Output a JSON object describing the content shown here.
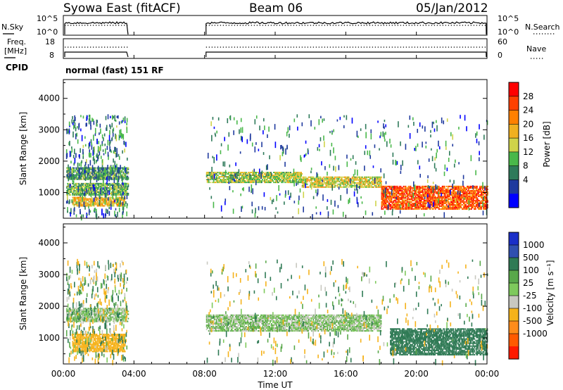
{
  "header": {
    "title": "Syowa East (fitACF)",
    "beam": "Beam 06",
    "date": "05/Jan/2012"
  },
  "nsky_panel": {
    "left_label": "N.Sky",
    "right_label": "N.Search",
    "left_ticks": [
      "10^5",
      "10^0"
    ],
    "right_ticks": [
      "10^5",
      "10^0"
    ]
  },
  "freq_panel": {
    "left_label_line1": "Freq.",
    "left_label_line2": "[MHz]",
    "right_label": "Nave",
    "left_ticks": [
      "18",
      "8"
    ],
    "right_ticks": [
      "60",
      "0"
    ]
  },
  "cpid": {
    "label": "CPID",
    "mode": "normal (fast) 151 RF"
  },
  "colors": {
    "power_scale": [
      "#0000ff",
      "#1f3a9e",
      "#2e7a5a",
      "#49b84a",
      "#cfd34a",
      "#f0b020",
      "#ff8000",
      "#ff4000",
      "#ff0000"
    ],
    "velocity_scale": [
      "#1a2fc8",
      "#3050b0",
      "#2f7a55",
      "#59a84a",
      "#7ec95c",
      "#c8c8c0",
      "#f5b21a",
      "#ff8c1a",
      "#ff5a00",
      "#ff1a00"
    ]
  },
  "chart_data": [
    {
      "type": "heatmap",
      "name": "power",
      "ylabel": "Slant Range [km]",
      "yticks": [
        1000,
        2000,
        3000,
        4000
      ],
      "ylim": [
        180,
        4600
      ],
      "xlim": [
        "00:00",
        "24:00"
      ],
      "colorbar": {
        "label": "Power [dB]",
        "ticks": [
          "4",
          "8",
          "12",
          "16",
          "20",
          "24",
          "28"
        ],
        "range": [
          0,
          30
        ]
      },
      "data_gap": [
        "03:40",
        "08:05"
      ],
      "echo_bands": [
        {
          "start": "00:10",
          "end": "03:40",
          "range_km": [
            1400,
            1800
          ],
          "power_db": 10
        },
        {
          "start": "00:10",
          "end": "03:40",
          "range_km": [
            900,
            1300
          ],
          "power_db": 12
        },
        {
          "start": "00:30",
          "end": "03:30",
          "range_km": [
            550,
            850
          ],
          "power_db": 18
        },
        {
          "start": "08:05",
          "end": "13:30",
          "range_km": [
            1300,
            1650
          ],
          "power_db": 14
        },
        {
          "start": "13:30",
          "end": "18:00",
          "range_km": [
            1150,
            1500
          ],
          "power_db": 16
        },
        {
          "start": "18:00",
          "end": "24:00",
          "range_km": [
            450,
            1200
          ],
          "power_db": 24
        }
      ]
    },
    {
      "type": "heatmap",
      "name": "velocity",
      "ylabel": "Slant Range [km]",
      "yticks": [
        1000,
        2000,
        3000,
        4000
      ],
      "ylim": [
        180,
        4600
      ],
      "xlim": [
        "00:00",
        "24:00"
      ],
      "xticks": [
        "00:00",
        "04:00",
        "08:00",
        "12:00",
        "16:00",
        "20:00",
        "00:00"
      ],
      "xlabel": "Time UT",
      "colorbar": {
        "label": "Velocity [m s⁻¹]",
        "ticks": [
          "1000",
          "500",
          "100",
          "25",
          "-25",
          "-100",
          "-500",
          "-1000"
        ],
        "range": [
          -1250,
          1250
        ]
      },
      "data_gap": [
        "03:40",
        "08:05"
      ],
      "echo_bands": [
        {
          "start": "00:10",
          "end": "03:40",
          "range_km": [
            1500,
            1950
          ],
          "velocity": 0
        },
        {
          "start": "00:30",
          "end": "03:30",
          "range_km": [
            550,
            1100
          ],
          "velocity": -300
        },
        {
          "start": "08:05",
          "end": "18:00",
          "range_km": [
            1200,
            1700
          ],
          "velocity": 0
        },
        {
          "start": "18:30",
          "end": "24:00",
          "range_km": [
            450,
            1300
          ],
          "velocity": 200
        }
      ]
    }
  ]
}
